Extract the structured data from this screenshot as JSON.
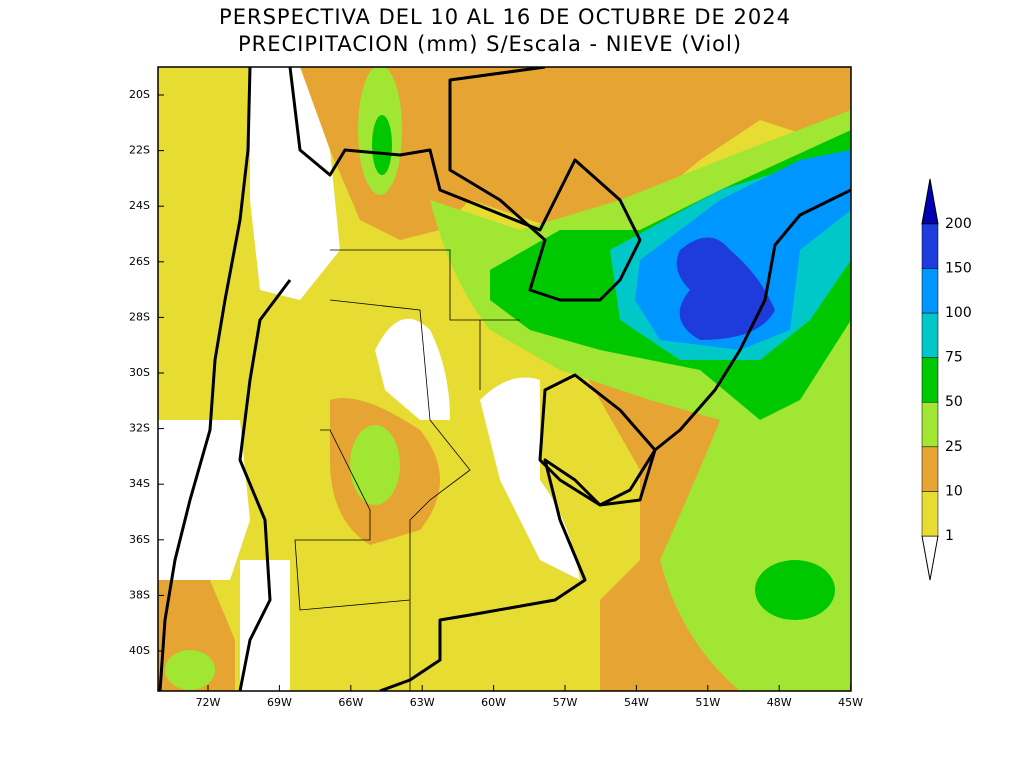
{
  "header": {
    "title_line1": "PERSPECTIVA DEL 10 AL 16 DE OCTUBRE DE 2024",
    "title_line2": "PRECIPITACION (mm) S/Escala - NIEVE (Viol)"
  },
  "map": {
    "lat_labels": [
      "20S",
      "22S",
      "24S",
      "26S",
      "28S",
      "30S",
      "32S",
      "34S",
      "36S",
      "38S",
      "40S"
    ],
    "lon_labels": [
      "72W",
      "69W",
      "66W",
      "63W",
      "60W",
      "57W",
      "54W",
      "51W",
      "48W",
      "45W"
    ]
  },
  "legend": {
    "levels": [
      1,
      10,
      25,
      50,
      75,
      100,
      150,
      200
    ],
    "colors": [
      "#e6dc32",
      "#e6a532",
      "#a0e632",
      "#00c800",
      "#00c8c8",
      "#0096ff",
      "#1e3cdc",
      "#0000b4"
    ]
  }
}
